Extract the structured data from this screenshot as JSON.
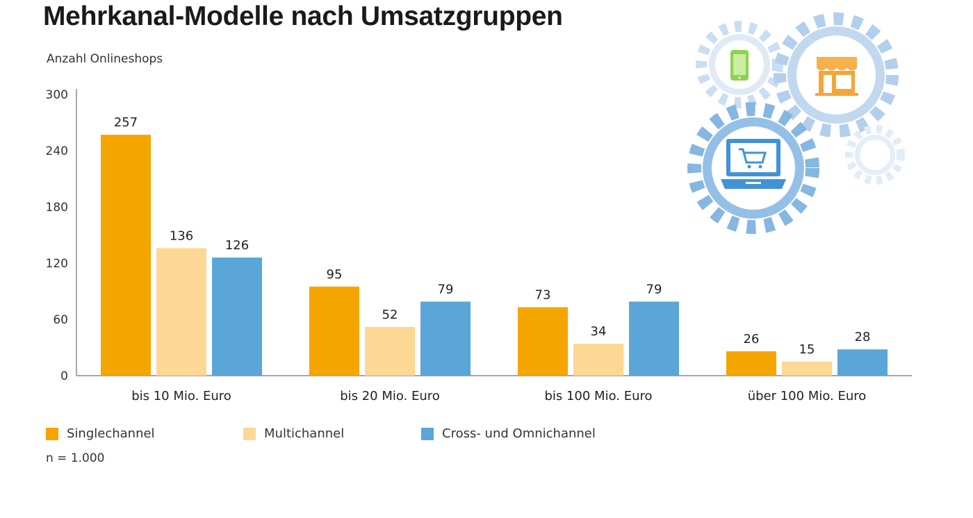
{
  "header": {
    "title": "Mehrkanal-Modelle nach Umsatzgruppen"
  },
  "note": "n = 1.000",
  "colors": {
    "singlechannel": "#f5a500",
    "multichannel": "#fdd794",
    "omnichannel": "#5aa6d8",
    "axis": "#888888"
  },
  "icons": [
    "smartphone-icon",
    "storefront-icon",
    "laptop-cart-icon",
    "gear-icon"
  ],
  "chart_data": {
    "type": "bar",
    "title": "Mehrkanal-Modelle nach Umsatzgruppen",
    "ylabel": "Anzahl Onlineshops",
    "xlabel": "",
    "ylim": [
      0,
      300
    ],
    "yticks": [
      "0",
      "60",
      "120",
      "180",
      "240",
      "300"
    ],
    "grid": false,
    "legend_position": "bottom-left",
    "categories": [
      "bis 10 Mio. Euro",
      "bis 20 Mio. Euro",
      "bis 100 Mio. Euro",
      "über 100 Mio. Euro"
    ],
    "series": [
      {
        "name": "Singlechannel",
        "values": [
          257,
          95,
          73,
          26
        ]
      },
      {
        "name": "Multichannel",
        "values": [
          136,
          52,
          34,
          15
        ]
      },
      {
        "name": "Cross- und Omnichannel",
        "values": [
          126,
          79,
          79,
          28
        ]
      }
    ]
  }
}
